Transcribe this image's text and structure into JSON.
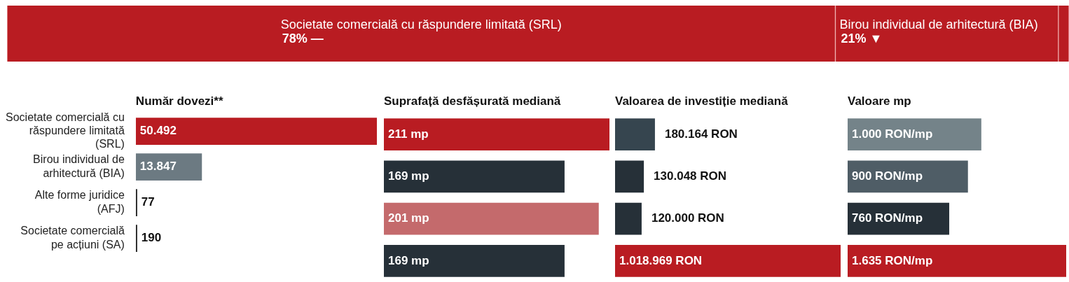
{
  "chart_data": [
    {
      "type": "bar",
      "orientation": "horizontal",
      "stacked": true,
      "categories": [
        null
      ],
      "xlim": [
        0,
        100
      ],
      "tick_labels": false,
      "series": [
        {
          "name": "Societate comercială cu răspundere limitată (SRL)",
          "color": "#b91c22",
          "values": [
            78
          ],
          "value_labels": [
            "78% —"
          ]
        },
        {
          "name": "Birou individual de arhitectură (BIA)",
          "color": "#b91c22",
          "values": [
            21
          ],
          "value_labels": [
            "21% ▼"
          ]
        },
        {
          "color": "#b91c22",
          "values": [
            1
          ],
          "value_labels": [
            null
          ]
        }
      ]
    },
    {
      "type": "bar",
      "orientation": "horizontal",
      "title": "Număr dovezi**",
      "categories": [
        "Societate comercială cu răspundere limitată (SRL)",
        "Birou individual de arhitectură (BIA)",
        "Alte forme juridice (AFJ)",
        "Societate comercială pe acțiuni (SA)"
      ],
      "tick_labels": "y",
      "values": [
        50492,
        13847,
        77,
        190
      ],
      "colors": [
        "#b91c22",
        "#6c7a82",
        "#222222",
        "#222222"
      ],
      "value_labels": [
        "50.492",
        "13.847",
        "77",
        "190"
      ]
    },
    {
      "type": "bar",
      "orientation": "horizontal",
      "title": "Suprafață desfășurată mediană",
      "categories": [
        null,
        null,
        null,
        null
      ],
      "tick_labels": false,
      "values": [
        211,
        169,
        201,
        169
      ],
      "colors": [
        "#b91c22",
        "#263038",
        "#c46a6c",
        "#263038"
      ],
      "value_labels": [
        "211 mp",
        "169 mp",
        "201 mp",
        "169 mp"
      ]
    },
    {
      "type": "bar",
      "orientation": "horizontal",
      "title": "Valoarea de investiție mediană",
      "categories": [
        null,
        null,
        null,
        null
      ],
      "tick_labels": false,
      "values": [
        180164,
        130048,
        120000,
        1018969
      ],
      "colors": [
        "#36454f",
        "#263038",
        "#263038",
        "#b91c22"
      ],
      "value_labels": [
        "180.164 RON",
        "130.048 RON",
        "120.000 RON",
        "1.018.969 RON"
      ]
    },
    {
      "type": "bar",
      "orientation": "horizontal",
      "title": "Valoare mp",
      "categories": [
        null,
        null,
        null,
        null
      ],
      "tick_labels": false,
      "values": [
        1000,
        900,
        760,
        1635
      ],
      "colors": [
        "#748389",
        "#4f5d66",
        "#263038",
        "#b91c22"
      ],
      "value_labels": [
        "1.000 RON/mp",
        "900 RON/mp",
        "760 RON/mp",
        "1.635 RON/mp"
      ]
    }
  ]
}
